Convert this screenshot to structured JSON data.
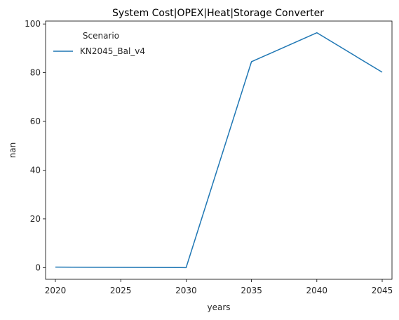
{
  "chart_data": {
    "type": "line",
    "title": "System Cost|OPEX|Heat|Storage Converter",
    "xlabel": "years",
    "ylabel": "nan",
    "x": [
      2020,
      2025,
      2030,
      2035,
      2040,
      2045
    ],
    "xticks": [
      "2020",
      "2025",
      "2030",
      "2035",
      "2040",
      "2045"
    ],
    "yticks": [
      "0",
      "20",
      "40",
      "60",
      "80",
      "100"
    ],
    "xlim": [
      2019.25,
      2045.75
    ],
    "ylim": [
      -4.8,
      101.2
    ],
    "grid": false,
    "legend": {
      "title": "Scenario",
      "placement": "top-left"
    },
    "series": [
      {
        "name": "KN2045_Bal_v4",
        "color": "#1f77b4",
        "values": [
          0.2,
          0.1,
          0.0,
          84.5,
          96.4,
          80.2
        ]
      }
    ]
  }
}
